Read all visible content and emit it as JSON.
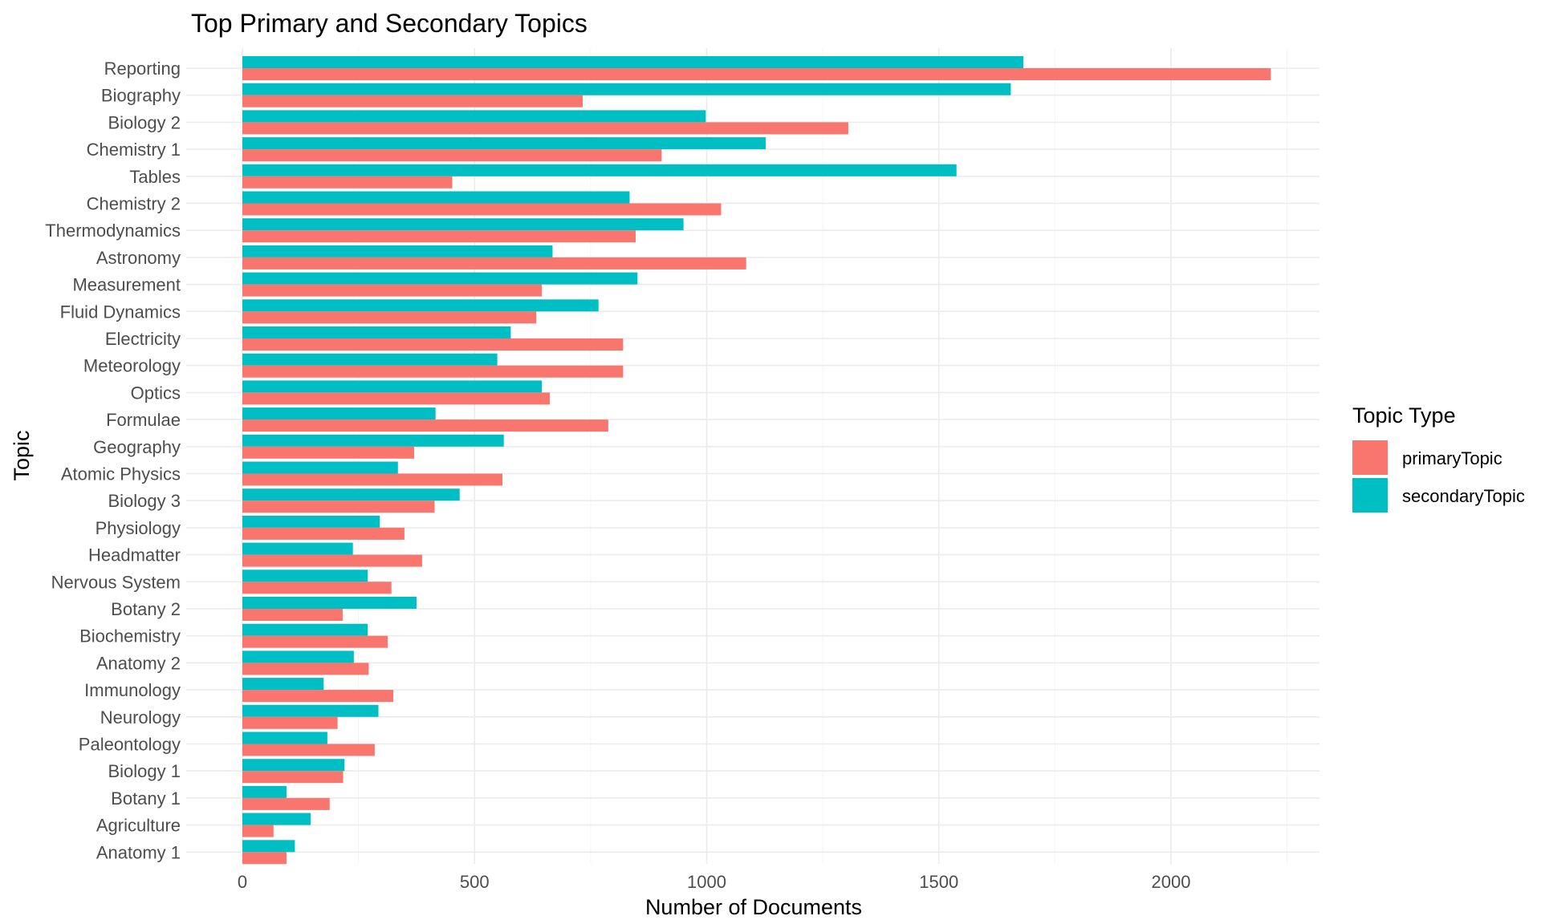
{
  "chart_data": {
    "type": "bar",
    "orientation": "horizontal",
    "title": "Top Primary and Secondary Topics",
    "xlabel": "Number of Documents",
    "ylabel": "Topic",
    "xlim": [
      0,
      2330
    ],
    "x_ticks": [
      0,
      500,
      1000,
      1500,
      2000
    ],
    "grid": true,
    "legend": {
      "title": "Topic Type",
      "placement": "right"
    },
    "categories": [
      "Reporting",
      "Biography",
      "Biology 2",
      "Chemistry 1",
      "Tables",
      "Chemistry 2",
      "Thermodynamics",
      "Astronomy",
      "Measurement",
      "Fluid Dynamics",
      "Electricity",
      "Meteorology",
      "Optics",
      "Formulae",
      "Geography",
      "Atomic Physics",
      "Biology 3",
      "Physiology",
      "Headmatter",
      "Nervous System",
      "Botany 2",
      "Biochemistry",
      "Anatomy 2",
      "Immunology",
      "Neurology",
      "Paleontology",
      "Biology 1",
      "Botany 1",
      "Agriculture",
      "Anatomy 1"
    ],
    "series": [
      {
        "name": "primaryTopic",
        "color": "#F8766D",
        "values": [
          2215,
          733,
          1305,
          903,
          452,
          1031,
          847,
          1085,
          645,
          633,
          820,
          820,
          662,
          788,
          370,
          560,
          414,
          349,
          387,
          321,
          216,
          313,
          272,
          325,
          205,
          285,
          217,
          188,
          67,
          95
        ]
      },
      {
        "name": "secondaryTopic",
        "color": "#00BFC4",
        "values": [
          1682,
          1655,
          998,
          1127,
          1538,
          834,
          950,
          668,
          851,
          767,
          578,
          549,
          645,
          416,
          563,
          335,
          468,
          296,
          238,
          270,
          375,
          270,
          240,
          175,
          293,
          183,
          220,
          95,
          147,
          113
        ]
      }
    ]
  }
}
